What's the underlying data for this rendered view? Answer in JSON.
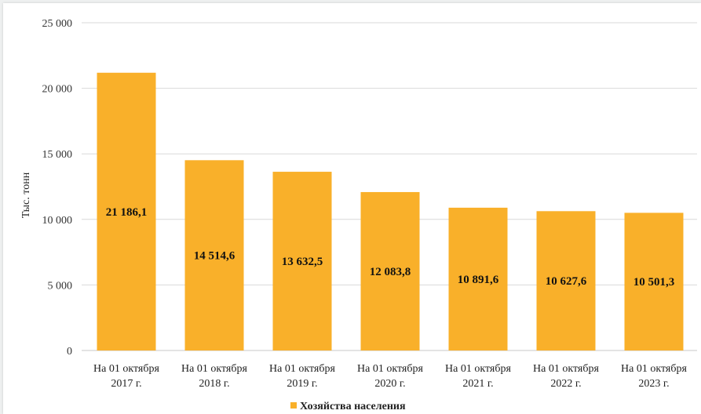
{
  "chart_data": {
    "type": "bar",
    "categories": [
      [
        "На 01 октября",
        "2017 г."
      ],
      [
        "На 01 октября",
        "2018 г."
      ],
      [
        "На 01 октября",
        "2019 г."
      ],
      [
        "На 01 октября",
        "2020 г."
      ],
      [
        "На 01 октября",
        "2021 г."
      ],
      [
        "На 01 октября",
        "2022 г."
      ],
      [
        "На 01 октября",
        "2023 г."
      ]
    ],
    "series": [
      {
        "name": "Хозяйства населения",
        "color": "#f9b02a",
        "values": [
          21186.1,
          14514.6,
          13632.5,
          12083.8,
          10891.6,
          10627.6,
          10501.3
        ],
        "labels": [
          "21 186,1",
          "14 514,6",
          "13 632,5",
          "12 083,8",
          "10 891,6",
          "10 627,6",
          "10 501,3"
        ]
      }
    ],
    "ylabel": "Тыс. тонн",
    "ylim": [
      0,
      25000
    ],
    "yticks": [
      0,
      5000,
      10000,
      15000,
      20000,
      25000
    ],
    "ytick_labels": [
      "0",
      "5 000",
      "10 000",
      "15 000",
      "20 000",
      "25 000"
    ],
    "grid": true,
    "gridline_color": "#d9d9d9",
    "legend": "bottom-center"
  }
}
